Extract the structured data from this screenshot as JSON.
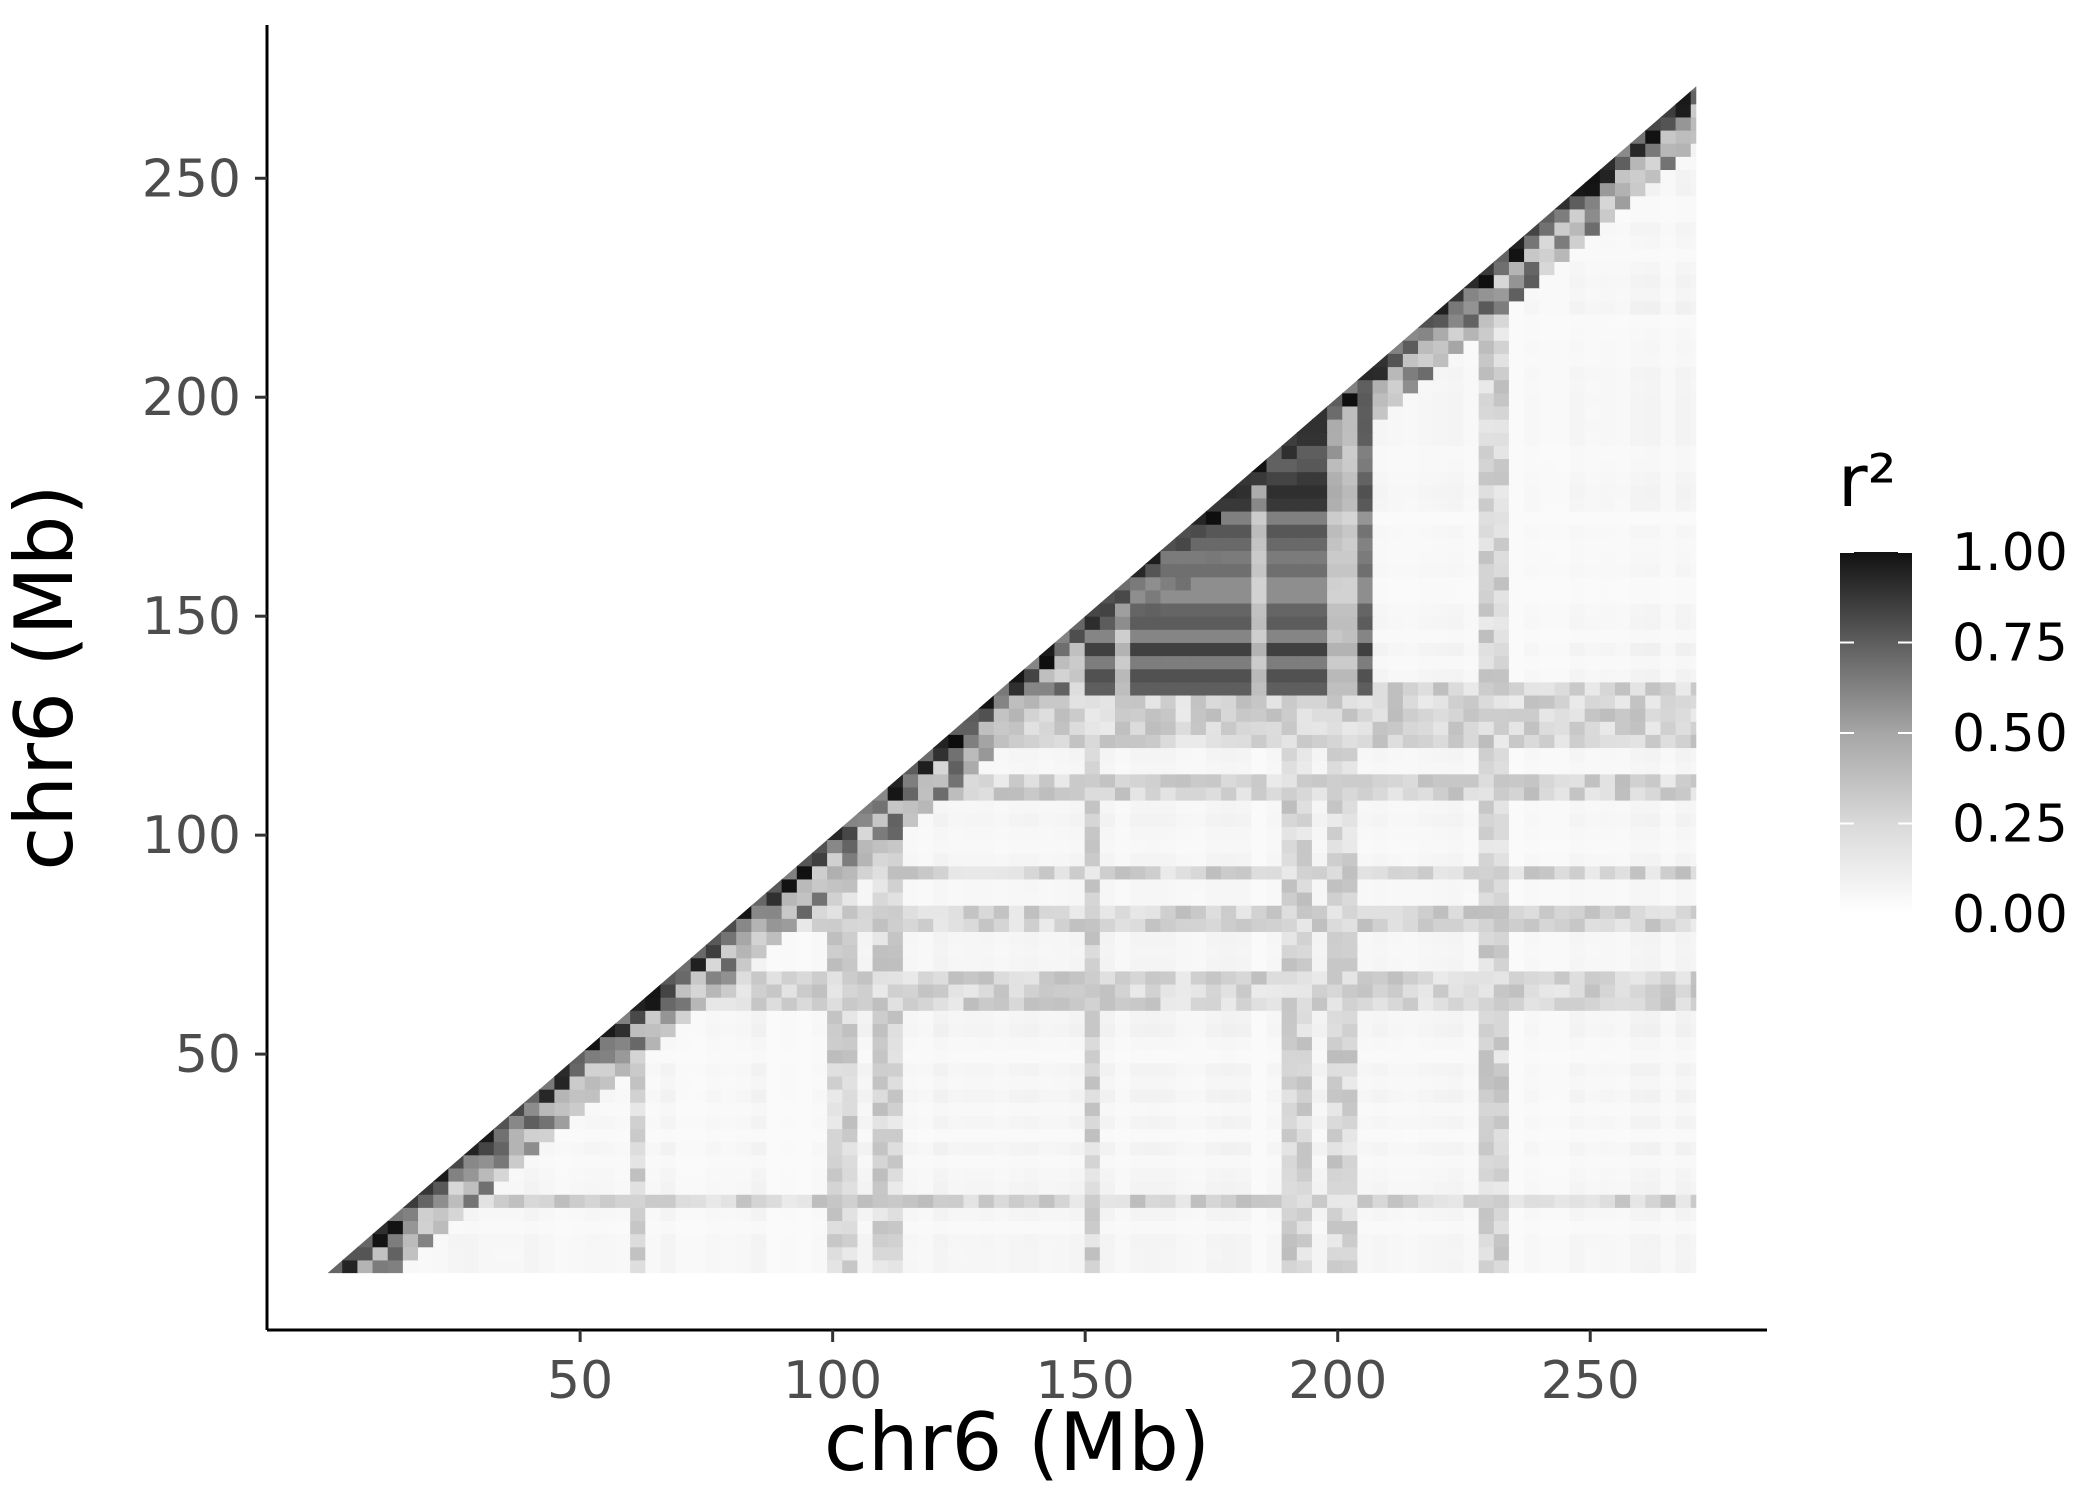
{
  "chart_data": {
    "type": "heatmap",
    "subtype": "LD triangle (upper-left empty)",
    "title": "",
    "xlabel": "chr6 (Mb)",
    "ylabel": "chr6 (Mb)",
    "xlim": [
      -12,
      285
    ],
    "ylim": [
      -13,
      285
    ],
    "data_range": [
      0,
      271
    ],
    "xticks": [
      50,
      100,
      150,
      200,
      250
    ],
    "yticks": [
      50,
      100,
      150,
      200,
      250
    ],
    "grid": false,
    "colors": {
      "low": "#ffffff",
      "high": "#000000",
      "axis": "#000000",
      "tick_text": "#4d4d4d"
    },
    "legend": {
      "title": "r²",
      "position": "right",
      "ticks": [
        "0.00",
        "0.25",
        "0.50",
        "0.75",
        "1.00"
      ],
      "values": [
        0,
        0.25,
        0.5,
        0.75,
        1.0
      ]
    },
    "description_of_values": "Pairwise r² between positions x and y (x>=y): high (0.6-1.0) near the diagonal, a strong block roughly x 150-205 Mb, y 130-200 Mb; mostly near 0 elsewhere with faint banding.",
    "high_ld_blocks": [
      {
        "x": [
          150,
          205
        ],
        "y": [
          130,
          200
        ],
        "r2": 0.75
      },
      {
        "x": [
          165,
          200
        ],
        "y": [
          165,
          200
        ],
        "r2": 0.9
      },
      {
        "x": [
          190,
          200
        ],
        "y": [
          180,
          200
        ],
        "r2": 0.95
      }
    ],
    "banded_rows_mb": [
      15,
      60,
      65,
      80,
      90,
      110,
      120,
      125,
      130
    ],
    "banded_cols_mb": [
      60,
      100,
      110,
      150,
      190,
      200,
      230
    ]
  }
}
